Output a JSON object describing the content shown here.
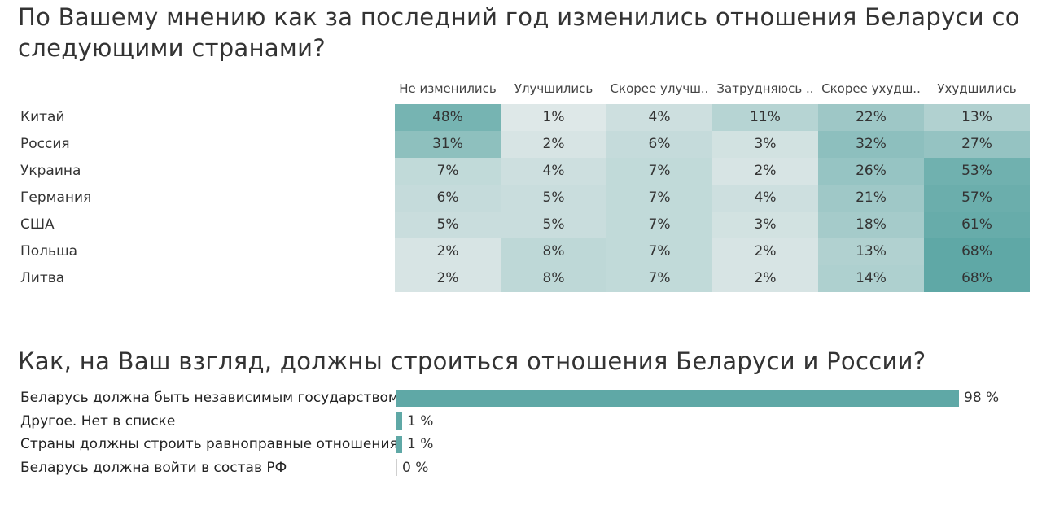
{
  "chart_data": [
    {
      "type": "heatmap",
      "title": "По Вашему мнению как за последний год изменились отношения Беларуси со следующими странами?",
      "columns": [
        "Не изменились",
        "Улучшились",
        "Скорее улучш..",
        "Затрудняюсь ..",
        "Скорее ухудш..",
        "Ухудшились"
      ],
      "rows": [
        "Китай",
        "Россия",
        "Украина",
        "Германия",
        "США",
        "Польша",
        "Литва"
      ],
      "values": [
        [
          48,
          1,
          4,
          11,
          22,
          13
        ],
        [
          31,
          2,
          6,
          3,
          32,
          27
        ],
        [
          7,
          4,
          7,
          2,
          26,
          53
        ],
        [
          6,
          5,
          7,
          4,
          21,
          57
        ],
        [
          5,
          5,
          7,
          3,
          18,
          61
        ],
        [
          2,
          8,
          7,
          2,
          13,
          68
        ],
        [
          2,
          8,
          7,
          2,
          14,
          68
        ]
      ],
      "labels": [
        [
          "48%",
          "1%",
          "4%",
          "11%",
          "22%",
          "13%"
        ],
        [
          "31%",
          "2%",
          "6%",
          "3%",
          "32%",
          "27%"
        ],
        [
          "7%",
          "4%",
          "7%",
          "2%",
          "26%",
          "53%"
        ],
        [
          "6%",
          "5%",
          "7%",
          "4%",
          "21%",
          "57%"
        ],
        [
          "5%",
          "5%",
          "7%",
          "3%",
          "18%",
          "61%"
        ],
        [
          "2%",
          "8%",
          "7%",
          "2%",
          "13%",
          "68%"
        ],
        [
          "2%",
          "8%",
          "7%",
          "2%",
          "14%",
          "68%"
        ]
      ],
      "color_low": "#f0f1f1",
      "color_high": "#5fa8a6"
    },
    {
      "type": "bar",
      "orientation": "horizontal",
      "title": "Как, на Ваш взгляд, должны строиться отношения Беларуси и России?",
      "categories": [
        "Беларусь должна быть независимым государством",
        "Другое. Нет в списке",
        "Страны должны строить равноправные отношения",
        "Беларусь должна войти в состав РФ"
      ],
      "values": [
        98,
        1,
        1,
        0
      ],
      "value_labels": [
        "98 %",
        "1 %",
        "1 %",
        "0 %"
      ],
      "xlim": [
        0,
        100
      ],
      "bar_color": "#5fa8a6"
    }
  ]
}
